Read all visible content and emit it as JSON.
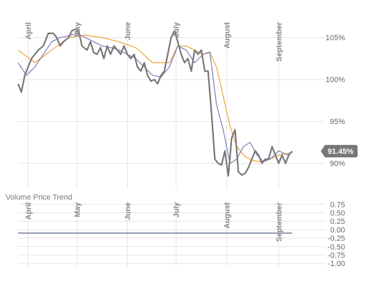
{
  "chart_data": [
    {
      "type": "line",
      "panel": "price",
      "ylim": [
        87,
        107
      ],
      "y_ticks": [
        {
          "value": 105,
          "label": "105%"
        },
        {
          "value": 100,
          "label": "100%"
        },
        {
          "value": 95,
          "label": "95%"
        },
        {
          "value": 90,
          "label": "90%"
        }
      ],
      "x_months": [
        "April",
        "May",
        "June",
        "July",
        "August",
        "September"
      ],
      "x_month_days": [
        6,
        35,
        65,
        94,
        124,
        155
      ],
      "x_range": [
        0,
        180
      ],
      "last_value_label": "91.45%",
      "last_value": 91.45,
      "colors": {
        "price": "#777777",
        "fast_avg": "#7a7ab8",
        "slow_avg": "#f0a030",
        "badge": "#777777"
      },
      "series": [
        {
          "role": "price",
          "x": [
            0,
            2,
            4,
            6,
            8,
            10,
            12,
            15,
            18,
            21,
            23,
            25,
            27,
            30,
            32,
            34,
            36,
            38,
            41,
            43,
            45,
            47,
            49,
            51,
            53,
            55,
            57,
            59,
            61,
            63,
            65,
            67,
            69,
            71,
            73,
            75,
            77,
            79,
            81,
            83,
            85,
            87,
            89,
            91,
            93,
            95,
            97,
            99,
            101,
            103,
            105,
            107,
            109,
            111,
            113,
            115,
            117,
            119,
            121,
            123,
            125,
            127,
            129,
            131,
            133,
            135,
            137,
            139,
            141,
            143,
            145,
            147,
            149,
            151,
            153,
            155,
            157,
            159,
            161,
            163
          ],
          "y": [
            99.5,
            98.5,
            100.5,
            101.5,
            102.5,
            103.0,
            103.5,
            104.0,
            105.5,
            105.5,
            105.0,
            104.0,
            104.5,
            105.0,
            105.8,
            106.0,
            105.8,
            104.0,
            103.5,
            104.5,
            103.2,
            103.0,
            103.8,
            102.5,
            104.0,
            103.0,
            104.0,
            103.5,
            103.0,
            104.0,
            103.0,
            102.5,
            103.0,
            101.5,
            101.0,
            102.0,
            100.5,
            99.8,
            100.0,
            99.5,
            100.5,
            101.0,
            103.0,
            105.0,
            105.8,
            104.5,
            103.0,
            102.0,
            102.5,
            101.0,
            103.5,
            103.0,
            103.5,
            101.0,
            101.0,
            96.0,
            90.5,
            90.0,
            89.8,
            91.5,
            88.5,
            93.0,
            94.0,
            89.0,
            88.6,
            88.8,
            89.5,
            90.5,
            91.5,
            91.0,
            90.0,
            90.5,
            90.5,
            92.0,
            91.0,
            90.0,
            91.0,
            90.0,
            91.0,
            91.45
          ]
        },
        {
          "role": "fast_avg",
          "x": [
            0,
            5,
            10,
            15,
            20,
            25,
            30,
            35,
            40,
            45,
            50,
            55,
            60,
            65,
            70,
            75,
            80,
            85,
            90,
            95,
            100,
            105,
            110,
            114,
            118,
            122,
            126,
            130,
            134,
            138,
            142,
            146,
            150,
            155,
            160,
            163
          ],
          "y": [
            102.0,
            100.5,
            101.5,
            103.0,
            104.5,
            105.0,
            105.2,
            105.5,
            105.0,
            104.5,
            104.0,
            103.8,
            103.5,
            103.0,
            102.5,
            101.5,
            100.5,
            100.3,
            101.5,
            104.0,
            103.5,
            102.0,
            103.0,
            103.3,
            97.0,
            94.0,
            90.0,
            90.5,
            92.0,
            92.5,
            91.0,
            90.2,
            90.5,
            91.5,
            91.0,
            91.3
          ]
        },
        {
          "role": "slow_avg",
          "x": [
            0,
            10,
            20,
            30,
            40,
            50,
            60,
            70,
            80,
            90,
            95,
            100,
            105,
            110,
            114,
            118,
            122,
            126,
            130,
            135,
            140,
            145,
            150,
            155,
            160,
            163
          ],
          "y": [
            103.5,
            102.0,
            103.5,
            105.0,
            105.3,
            105.0,
            104.5,
            103.8,
            102.0,
            102.0,
            104.0,
            104.0,
            103.5,
            103.0,
            103.2,
            101.5,
            98.0,
            94.5,
            92.0,
            90.8,
            90.3,
            90.2,
            90.5,
            91.0,
            91.2,
            91.3
          ]
        }
      ]
    },
    {
      "type": "line",
      "panel": "indicator",
      "title": "Volume Price Trend",
      "ylim": [
        -1.1,
        0.85
      ],
      "y_ticks": [
        {
          "value": 0.75,
          "label": "0.75"
        },
        {
          "value": 0.5,
          "label": "0.50"
        },
        {
          "value": 0.25,
          "label": "0.25"
        },
        {
          "value": 0.0,
          "label": "0.00"
        },
        {
          "value": -0.25,
          "label": "-0.25"
        },
        {
          "value": -0.5,
          "label": "-0.50"
        },
        {
          "value": -0.75,
          "label": "-0.75"
        },
        {
          "value": -1.0,
          "label": "-1.00"
        }
      ],
      "x_months": [
        "April",
        "May",
        "June",
        "July",
        "August",
        "September"
      ],
      "x_month_days": [
        6,
        35,
        65,
        94,
        124,
        155
      ],
      "x_range": [
        0,
        180
      ],
      "colors": {
        "line": "#2c3e66"
      },
      "series": [
        {
          "role": "volume_price_trend",
          "x": [
            0,
            163
          ],
          "y": [
            -0.1,
            -0.1
          ]
        }
      ]
    }
  ]
}
